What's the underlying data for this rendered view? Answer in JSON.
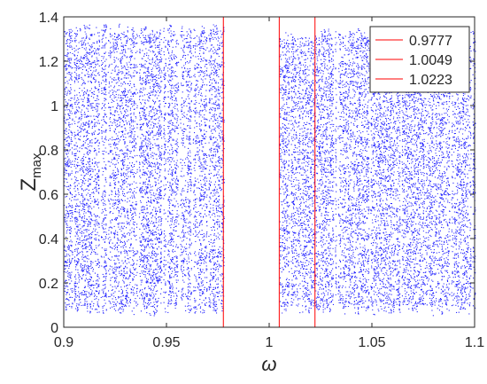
{
  "chart_data": {
    "type": "scatter",
    "title": "",
    "xlabel": "ω",
    "ylabel": {
      "main": "Z",
      "sub": "max"
    },
    "xlim": [
      0.9,
      1.1
    ],
    "ylim": [
      0,
      1.4
    ],
    "x_ticks": [
      0.9,
      0.95,
      1.0,
      1.05,
      1.1
    ],
    "x_tick_labels": [
      "0.9",
      "0.95",
      "1",
      "1.05",
      "1.1"
    ],
    "y_ticks": [
      0,
      0.2,
      0.4,
      0.6,
      0.8,
      1.0,
      1.2,
      1.4
    ],
    "y_tick_labels": [
      "0",
      "0.2",
      "0.4",
      "0.6",
      "0.8",
      "1",
      "1.2",
      "1.4"
    ],
    "grid": false,
    "scatter_color": "#0000ff",
    "vertical_lines": [
      {
        "x": 0.9777,
        "label": "0.9777",
        "color": "#ff0000"
      },
      {
        "x": 1.0049,
        "label": "1.0049",
        "color": "#ff0000"
      },
      {
        "x": 1.0223,
        "label": "1.0223",
        "color": "#ff0000"
      }
    ],
    "legend_position": "top-right",
    "dense_regions": [
      {
        "x_range": [
          0.9,
          0.9777
        ],
        "y_range": [
          0.05,
          1.37
        ]
      },
      {
        "x_range": [
          1.0049,
          1.0223
        ],
        "y_range": [
          0.05,
          1.33
        ]
      },
      {
        "x_range": [
          1.0223,
          1.1
        ],
        "y_range": [
          0.05,
          1.35
        ]
      }
    ],
    "empty_regions": [
      {
        "x_range": [
          0.9777,
          1.0049
        ]
      }
    ]
  }
}
